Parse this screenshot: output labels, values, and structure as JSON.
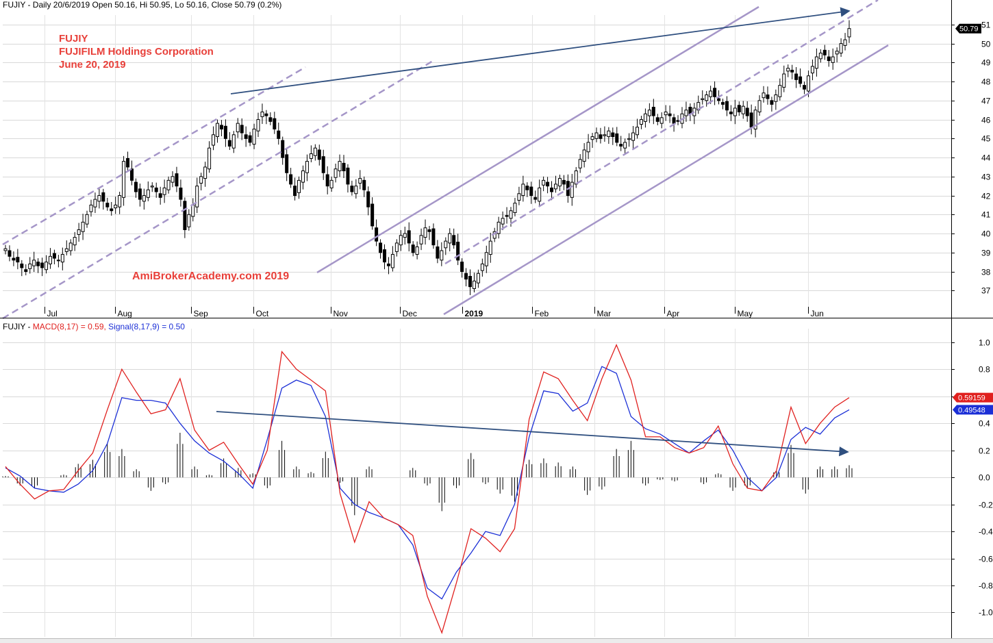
{
  "colors": {
    "candle": "#000000",
    "trend_solid": "#2f4f7f",
    "channel": "#a596c8",
    "macd": "#e0201e",
    "signal": "#1b2fd6",
    "annotation": "#e8403a"
  },
  "header": {
    "price_panel": "FUJIY - Daily 20/6/2019 Open 50.16, Hi 50.95, Lo 50.16, Close 50.79 (0.2%)",
    "macd_symbol": "FUJIY - ",
    "macd_label": "MACD(8,17) = 0.59, ",
    "signal_label": "Signal(8,17,9) = 0.50"
  },
  "annotations": {
    "ticker": "FUJIY",
    "company": "FUJIFILM Holdings Corporation",
    "date": "June 20, 2019",
    "watermark": "AmiBrokerAcademy.com   2019"
  },
  "chart_data": [
    {
      "type": "candlestick",
      "title": "FUJIY - Daily 20/6/2019 Open 50.16, Hi 50.95, Lo 50.16, Close 50.79 (0.2%)",
      "ylim": [
        36,
        51.5
      ],
      "y_ticks": [
        37,
        38,
        39,
        40,
        41,
        42,
        43,
        44,
        45,
        46,
        47,
        48,
        49,
        50,
        51
      ],
      "x_ticks": [
        "Jul",
        "Aug",
        "Sep",
        "Oct",
        "Nov",
        "Dec",
        "2019",
        "Feb",
        "Mar",
        "Apr",
        "May",
        "Jun"
      ],
      "last_close_label": "50.79",
      "closes": [
        39.2,
        38.8,
        38.6,
        38.5,
        38.2,
        38.0,
        38.4,
        38.6,
        38.3,
        38.2,
        38.5,
        38.8,
        38.7,
        38.6,
        38.9,
        39.2,
        39.5,
        39.8,
        40.2,
        40.6,
        41.0,
        41.5,
        41.8,
        42.0,
        41.7,
        41.4,
        41.2,
        41.5,
        42.0,
        43.8,
        43.5,
        42.8,
        42.2,
        41.8,
        42.0,
        42.3,
        42.5,
        42.2,
        41.9,
        42.4,
        42.8,
        43.0,
        42.5,
        41.8,
        40.2,
        41.0,
        41.5,
        42.5,
        43.0,
        43.5,
        44.5,
        45.2,
        45.8,
        45.5,
        45.0,
        44.6,
        45.2,
        45.8,
        45.3,
        45.0,
        44.8,
        45.5,
        46.0,
        46.4,
        46.2,
        45.9,
        45.5,
        45.0,
        44.0,
        43.2,
        42.6,
        42.0,
        42.8,
        43.3,
        43.8,
        44.2,
        44.5,
        43.9,
        43.2,
        42.5,
        42.8,
        43.4,
        43.8,
        43.3,
        42.6,
        42.2,
        42.5,
        42.9,
        42.3,
        41.4,
        40.4,
        39.6,
        39.0,
        38.5,
        38.3,
        38.9,
        39.5,
        39.9,
        40.0,
        39.5,
        39.0,
        39.3,
        39.9,
        40.3,
        40.1,
        39.4,
        38.7,
        39.1,
        39.6,
        40.0,
        39.4,
        38.6,
        38.0,
        37.6,
        37.2,
        37.5,
        37.9,
        38.4,
        39.0,
        39.6,
        40.1,
        40.6,
        40.8,
        40.9,
        41.2,
        41.6,
        42.1,
        42.6,
        42.3,
        42.0,
        41.8,
        42.4,
        42.8,
        42.5,
        42.2,
        42.6,
        42.9,
        42.6,
        42.0,
        42.7,
        43.3,
        43.9,
        44.4,
        44.8,
        45.1,
        45.3,
        45.0,
        45.2,
        45.4,
        45.1,
        44.8,
        44.6,
        44.8,
        45.0,
        45.3,
        45.6,
        46.0,
        46.3,
        46.5,
        46.2,
        45.9,
        46.1,
        46.4,
        46.2,
        45.8,
        45.9,
        46.3,
        46.5,
        46.3,
        46.6,
        46.9,
        47.1,
        47.3,
        47.5,
        47.2,
        47.0,
        46.8,
        46.5,
        46.3,
        46.6,
        46.4,
        46.7,
        46.2,
        45.6,
        46.5,
        47.0,
        47.4,
        47.1,
        46.8,
        47.3,
        47.8,
        48.4,
        48.7,
        48.5,
        48.1,
        47.9,
        47.6,
        48.3,
        48.8,
        49.3,
        49.5,
        49.4,
        49.1,
        49.3,
        49.6,
        50.0,
        50.2,
        50.79
      ]
    },
    {
      "type": "line",
      "title": "FUJIY - MACD(8,17) = 0.59, Signal(8,17,9) = 0.50",
      "ylim": [
        -1.18,
        1.1
      ],
      "y_ticks": [
        1.0,
        0.8,
        0.6,
        0.4,
        0.2,
        0.0,
        -0.2,
        -0.4,
        -0.6,
        -0.8,
        -1.0
      ],
      "last_value_labels": {
        "macd": "0.59159",
        "signal": "0.49548"
      },
      "series": [
        {
          "name": "MACD(8,17)",
          "values": [
            0.08,
            -0.05,
            -0.16,
            -0.1,
            -0.09,
            0.05,
            0.18,
            0.5,
            0.8,
            0.63,
            0.47,
            0.5,
            0.73,
            0.35,
            0.2,
            0.26,
            0.1,
            -0.05,
            0.2,
            0.93,
            0.8,
            0.72,
            0.64,
            -0.12,
            -0.48,
            -0.18,
            -0.3,
            -0.35,
            -0.43,
            -0.88,
            -1.15,
            -0.78,
            -0.38,
            -0.45,
            -0.55,
            -0.38,
            0.43,
            0.78,
            0.73,
            0.57,
            0.42,
            0.73,
            0.98,
            0.72,
            0.3,
            0.3,
            0.22,
            0.18,
            0.22,
            0.38,
            0.1,
            -0.08,
            -0.1,
            0.05,
            0.52,
            0.25,
            0.4,
            0.52,
            0.59
          ]
        },
        {
          "name": "Signal(8,17,9)",
          "values": [
            0.07,
            0.01,
            -0.08,
            -0.1,
            -0.11,
            -0.05,
            0.05,
            0.25,
            0.59,
            0.57,
            0.57,
            0.55,
            0.4,
            0.27,
            0.18,
            0.12,
            0.03,
            -0.08,
            0.28,
            0.66,
            0.72,
            0.68,
            0.45,
            -0.08,
            -0.2,
            -0.26,
            -0.3,
            -0.35,
            -0.5,
            -0.82,
            -0.9,
            -0.7,
            -0.56,
            -0.4,
            -0.43,
            -0.2,
            0.3,
            0.64,
            0.62,
            0.49,
            0.55,
            0.82,
            0.77,
            0.45,
            0.36,
            0.32,
            0.25,
            0.18,
            0.27,
            0.35,
            0.2,
            0.0,
            -0.1,
            0.0,
            0.28,
            0.37,
            0.32,
            0.44,
            0.5
          ]
        },
        {
          "name": "Histogram",
          "values": [
            0.01,
            -0.06,
            -0.08,
            0.0,
            0.02,
            0.1,
            0.13,
            0.25,
            0.21,
            0.06,
            -0.1,
            -0.05,
            0.33,
            0.08,
            0.02,
            0.14,
            0.07,
            0.03,
            -0.08,
            0.27,
            0.08,
            0.04,
            0.19,
            -0.04,
            -0.28,
            0.08,
            0.0,
            0.0,
            0.07,
            -0.06,
            -0.25,
            -0.08,
            0.18,
            -0.05,
            -0.12,
            -0.18,
            0.13,
            0.14,
            0.11,
            0.08,
            -0.13,
            -0.09,
            0.21,
            0.27,
            -0.06,
            -0.02,
            -0.03,
            0.0,
            -0.05,
            0.03,
            -0.1,
            -0.08,
            0.0,
            0.05,
            0.24,
            -0.12,
            0.08,
            0.08,
            0.09
          ]
        }
      ]
    }
  ]
}
